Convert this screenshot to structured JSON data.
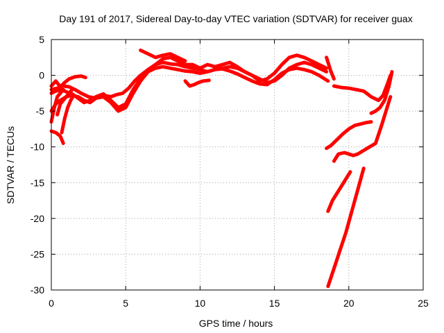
{
  "chart_data": {
    "type": "scatter",
    "title": "Day 191 of 2017, Sidereal Day-to-day VTEC variation (SDTVAR) for receiver guax",
    "xlabel": "GPS time / hours",
    "ylabel": "SDTVAR / TECUs",
    "xlim": [
      0,
      25
    ],
    "ylim": [
      -30,
      5
    ],
    "xticks": [
      0,
      5,
      10,
      15,
      20,
      25
    ],
    "yticks": [
      5,
      0,
      -5,
      -10,
      -15,
      -20,
      -25,
      -30
    ],
    "grid": true,
    "legend": "none",
    "color": "#ff0000",
    "series": [
      {
        "x": [
          0.0,
          0.3,
          0.6,
          0.9,
          1.2,
          1.6,
          2.0,
          2.3
        ],
        "y": [
          -1.5,
          -0.8,
          -1.6,
          -1.0,
          -0.5,
          -0.2,
          -0.1,
          -0.3
        ]
      },
      {
        "x": [
          0.0,
          0.4,
          0.8,
          1.2,
          1.6,
          2.0,
          2.5,
          3.0,
          3.5,
          4.0,
          4.4,
          4.8,
          5.2,
          5.6,
          6.0,
          6.5,
          7.0,
          7.5,
          8.0,
          8.5,
          9.0,
          9.5,
          10.0,
          10.5,
          11.0,
          11.5,
          12.0,
          12.5,
          13.0,
          13.5,
          14.0,
          14.5,
          15.0,
          15.5,
          16.0,
          16.5,
          17.0,
          17.5,
          18.0,
          18.5
        ],
        "y": [
          -2.0,
          -1.8,
          -1.5,
          -1.6,
          -2.0,
          -2.5,
          -3.0,
          -3.2,
          -2.8,
          -3.0,
          -2.7,
          -2.5,
          -1.8,
          -0.8,
          0.0,
          0.8,
          1.5,
          1.8,
          1.6,
          1.5,
          1.2,
          1.0,
          0.8,
          0.5,
          0.8,
          1.0,
          1.2,
          1.0,
          0.5,
          0.0,
          -0.5,
          -1.0,
          -0.8,
          0.0,
          1.0,
          1.5,
          1.8,
          1.5,
          1.0,
          0.5
        ]
      },
      {
        "x": [
          0.0,
          0.3,
          0.7,
          1.0,
          1.4,
          1.8,
          2.2,
          2.6,
          3.0,
          3.5,
          4.0,
          4.5,
          5.0,
          5.5,
          6.0,
          6.5,
          7.0,
          7.5,
          8.0,
          8.5,
          9.0,
          9.5,
          10.0,
          10.5,
          11.0,
          11.5,
          12.0,
          12.5,
          13.0,
          13.5,
          14.0,
          14.5,
          15.0,
          15.5,
          16.0,
          16.5,
          17.0,
          17.5,
          18.0,
          18.6
        ],
        "y": [
          -2.5,
          -2.2,
          -2.0,
          -2.3,
          -2.6,
          -3.2,
          -3.8,
          -3.5,
          -3.0,
          -2.6,
          -3.5,
          -4.5,
          -4.0,
          -2.0,
          -0.5,
          0.5,
          1.0,
          1.2,
          1.0,
          0.8,
          0.6,
          0.5,
          0.3,
          0.5,
          0.8,
          0.9,
          0.6,
          0.2,
          -0.3,
          -0.8,
          -1.2,
          -1.3,
          -0.6,
          0.3,
          0.8,
          1.0,
          0.8,
          0.5,
          0.0,
          -0.8
        ]
      },
      {
        "x": [
          0.0,
          0.3,
          0.6,
          1.0,
          1.4,
          1.8,
          2.2,
          2.6,
          3.0,
          3.5,
          4.0,
          4.5,
          5.0,
          5.5,
          6.0,
          6.5,
          7.0,
          7.5,
          8.0,
          8.5,
          9.0,
          9.5,
          10.0,
          10.5,
          11.0,
          11.5,
          12.0,
          12.5,
          13.0,
          13.5,
          14.0,
          14.5,
          15.0,
          15.5,
          16.0,
          16.5,
          17.0
        ],
        "y": [
          -5.0,
          -4.0,
          -3.5,
          -3.0,
          -2.8,
          -3.0,
          -3.5,
          -3.8,
          -3.2,
          -3.0,
          -3.8,
          -5.0,
          -4.5,
          -2.5,
          -0.8,
          0.5,
          1.5,
          2.3,
          2.5,
          2.0,
          1.5,
          1.5,
          1.0,
          1.5,
          1.2,
          1.5,
          1.8,
          1.2,
          0.5,
          0.0,
          -0.8,
          -0.5,
          0.3,
          1.5,
          2.5,
          2.8,
          2.5
        ]
      },
      {
        "x": [
          6.0,
          6.5,
          7.0,
          7.5,
          8.0,
          8.5,
          9.0
        ],
        "y": [
          3.5,
          3.0,
          2.5,
          2.8,
          3.0,
          2.5,
          2.0
        ]
      },
      {
        "x": [
          9.0,
          9.3,
          9.6,
          9.9,
          10.2,
          10.6
        ],
        "y": [
          -0.8,
          -1.5,
          -1.3,
          -1.0,
          -0.8,
          -0.7
        ]
      },
      {
        "x": [
          0.0,
          0.2,
          0.4,
          0.6,
          0.8
        ],
        "y": [
          -6.5,
          -4.5,
          -3.0,
          -2.5,
          -2.0
        ]
      },
      {
        "x": [
          0.0,
          0.3,
          0.6,
          0.8
        ],
        "y": [
          -7.8,
          -8.0,
          -8.5,
          -9.5
        ]
      },
      {
        "x": [
          0.4,
          0.6,
          0.8,
          1.0,
          1.2,
          1.4
        ],
        "y": [
          -5.5,
          -4.0,
          -3.5,
          -3.0,
          -2.5,
          -2.0
        ]
      },
      {
        "x": [
          0.7,
          0.9,
          1.1,
          1.3,
          1.5
        ],
        "y": [
          -8.0,
          -6.0,
          -4.5,
          -3.5,
          -2.8
        ]
      },
      {
        "x": [
          17.0,
          17.5,
          18.0,
          18.5
        ],
        "y": [
          2.5,
          2.0,
          1.5,
          1.0
        ]
      },
      {
        "x": [
          18.5,
          18.8,
          19.0
        ],
        "y": [
          2.5,
          0.5,
          -0.5
        ]
      },
      {
        "x": [
          19.0,
          19.5,
          20.0,
          20.5,
          21.0,
          21.5,
          22.0,
          22.3,
          22.6,
          22.8
        ],
        "y": [
          -1.5,
          -1.7,
          -1.8,
          -2.0,
          -2.2,
          -3.0,
          -3.5,
          -2.8,
          -1.2,
          0.0
        ]
      },
      {
        "x": [
          21.5,
          21.8,
          22.1,
          22.4,
          22.7,
          22.9
        ],
        "y": [
          -5.3,
          -5.0,
          -4.5,
          -3.5,
          -1.5,
          0.5
        ]
      },
      {
        "x": [
          18.5,
          18.8,
          19.2,
          19.6,
          20.0,
          20.4,
          20.8,
          21.2,
          21.5
        ],
        "y": [
          -10.2,
          -9.8,
          -9.0,
          -8.2,
          -7.5,
          -7.0,
          -6.8,
          -6.6,
          -6.5
        ]
      },
      {
        "x": [
          19.0,
          19.3,
          19.7,
          20.0,
          20.3,
          20.6,
          21.0,
          21.4,
          21.8,
          22.2,
          22.5,
          22.8
        ],
        "y": [
          -12.0,
          -11.0,
          -10.8,
          -11.0,
          -11.2,
          -11.0,
          -10.5,
          -10.0,
          -9.5,
          -7.0,
          -5.0,
          -3.0
        ]
      },
      {
        "x": [
          18.6,
          18.9,
          19.2,
          19.5,
          19.8,
          20.1
        ],
        "y": [
          -19.0,
          -17.5,
          -16.5,
          -15.5,
          -14.5,
          -13.5
        ]
      },
      {
        "x": [
          18.6,
          19.0,
          19.4,
          19.8,
          20.2,
          20.6,
          21.0
        ],
        "y": [
          -29.5,
          -27.0,
          -24.5,
          -22.0,
          -19.0,
          -16.0,
          -13.0
        ]
      }
    ]
  }
}
